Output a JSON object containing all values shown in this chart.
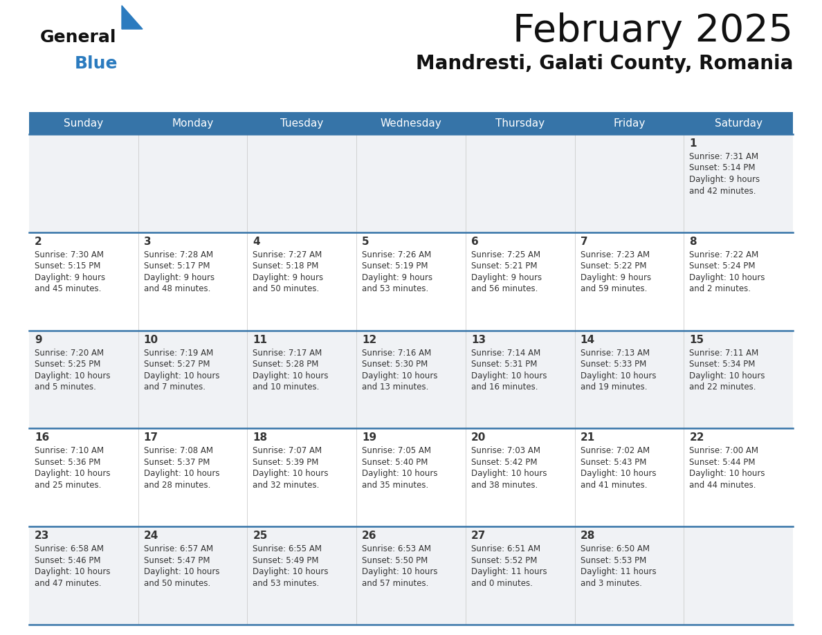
{
  "title": "February 2025",
  "subtitle": "Mandresti, Galati County, Romania",
  "header_bg_color": "#3674a8",
  "header_text_color": "#ffffff",
  "bg_color": "#ffffff",
  "row_bg_even": "#f0f2f5",
  "row_bg_odd": "#ffffff",
  "separator_color": "#3674a8",
  "day_names": [
    "Sunday",
    "Monday",
    "Tuesday",
    "Wednesday",
    "Thursday",
    "Friday",
    "Saturday"
  ],
  "text_color": "#333333",
  "day_num_color": "#333333",
  "calendar": [
    [
      null,
      null,
      null,
      null,
      null,
      null,
      {
        "day": "1",
        "sunrise": "7:31 AM",
        "sunset": "5:14 PM",
        "daylight1": "9 hours",
        "daylight2": "and 42 minutes."
      }
    ],
    [
      {
        "day": "2",
        "sunrise": "7:30 AM",
        "sunset": "5:15 PM",
        "daylight1": "9 hours",
        "daylight2": "and 45 minutes."
      },
      {
        "day": "3",
        "sunrise": "7:28 AM",
        "sunset": "5:17 PM",
        "daylight1": "9 hours",
        "daylight2": "and 48 minutes."
      },
      {
        "day": "4",
        "sunrise": "7:27 AM",
        "sunset": "5:18 PM",
        "daylight1": "9 hours",
        "daylight2": "and 50 minutes."
      },
      {
        "day": "5",
        "sunrise": "7:26 AM",
        "sunset": "5:19 PM",
        "daylight1": "9 hours",
        "daylight2": "and 53 minutes."
      },
      {
        "day": "6",
        "sunrise": "7:25 AM",
        "sunset": "5:21 PM",
        "daylight1": "9 hours",
        "daylight2": "and 56 minutes."
      },
      {
        "day": "7",
        "sunrise": "7:23 AM",
        "sunset": "5:22 PM",
        "daylight1": "9 hours",
        "daylight2": "and 59 minutes."
      },
      {
        "day": "8",
        "sunrise": "7:22 AM",
        "sunset": "5:24 PM",
        "daylight1": "10 hours",
        "daylight2": "and 2 minutes."
      }
    ],
    [
      {
        "day": "9",
        "sunrise": "7:20 AM",
        "sunset": "5:25 PM",
        "daylight1": "10 hours",
        "daylight2": "and 5 minutes."
      },
      {
        "day": "10",
        "sunrise": "7:19 AM",
        "sunset": "5:27 PM",
        "daylight1": "10 hours",
        "daylight2": "and 7 minutes."
      },
      {
        "day": "11",
        "sunrise": "7:17 AM",
        "sunset": "5:28 PM",
        "daylight1": "10 hours",
        "daylight2": "and 10 minutes."
      },
      {
        "day": "12",
        "sunrise": "7:16 AM",
        "sunset": "5:30 PM",
        "daylight1": "10 hours",
        "daylight2": "and 13 minutes."
      },
      {
        "day": "13",
        "sunrise": "7:14 AM",
        "sunset": "5:31 PM",
        "daylight1": "10 hours",
        "daylight2": "and 16 minutes."
      },
      {
        "day": "14",
        "sunrise": "7:13 AM",
        "sunset": "5:33 PM",
        "daylight1": "10 hours",
        "daylight2": "and 19 minutes."
      },
      {
        "day": "15",
        "sunrise": "7:11 AM",
        "sunset": "5:34 PM",
        "daylight1": "10 hours",
        "daylight2": "and 22 minutes."
      }
    ],
    [
      {
        "day": "16",
        "sunrise": "7:10 AM",
        "sunset": "5:36 PM",
        "daylight1": "10 hours",
        "daylight2": "and 25 minutes."
      },
      {
        "day": "17",
        "sunrise": "7:08 AM",
        "sunset": "5:37 PM",
        "daylight1": "10 hours",
        "daylight2": "and 28 minutes."
      },
      {
        "day": "18",
        "sunrise": "7:07 AM",
        "sunset": "5:39 PM",
        "daylight1": "10 hours",
        "daylight2": "and 32 minutes."
      },
      {
        "day": "19",
        "sunrise": "7:05 AM",
        "sunset": "5:40 PM",
        "daylight1": "10 hours",
        "daylight2": "and 35 minutes."
      },
      {
        "day": "20",
        "sunrise": "7:03 AM",
        "sunset": "5:42 PM",
        "daylight1": "10 hours",
        "daylight2": "and 38 minutes."
      },
      {
        "day": "21",
        "sunrise": "7:02 AM",
        "sunset": "5:43 PM",
        "daylight1": "10 hours",
        "daylight2": "and 41 minutes."
      },
      {
        "day": "22",
        "sunrise": "7:00 AM",
        "sunset": "5:44 PM",
        "daylight1": "10 hours",
        "daylight2": "and 44 minutes."
      }
    ],
    [
      {
        "day": "23",
        "sunrise": "6:58 AM",
        "sunset": "5:46 PM",
        "daylight1": "10 hours",
        "daylight2": "and 47 minutes."
      },
      {
        "day": "24",
        "sunrise": "6:57 AM",
        "sunset": "5:47 PM",
        "daylight1": "10 hours",
        "daylight2": "and 50 minutes."
      },
      {
        "day": "25",
        "sunrise": "6:55 AM",
        "sunset": "5:49 PM",
        "daylight1": "10 hours",
        "daylight2": "and 53 minutes."
      },
      {
        "day": "26",
        "sunrise": "6:53 AM",
        "sunset": "5:50 PM",
        "daylight1": "10 hours",
        "daylight2": "and 57 minutes."
      },
      {
        "day": "27",
        "sunrise": "6:51 AM",
        "sunset": "5:52 PM",
        "daylight1": "11 hours",
        "daylight2": "and 0 minutes."
      },
      {
        "day": "28",
        "sunrise": "6:50 AM",
        "sunset": "5:53 PM",
        "daylight1": "11 hours",
        "daylight2": "and 3 minutes."
      },
      null
    ]
  ],
  "logo_general_color": "#111111",
  "logo_blue_color": "#2b7bbf"
}
